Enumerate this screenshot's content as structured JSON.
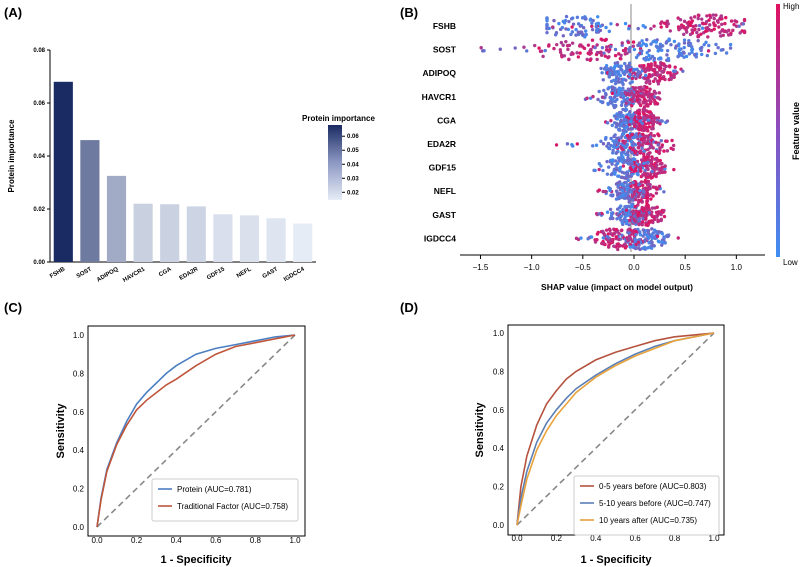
{
  "panels": {
    "a": "(A)",
    "b": "(B)",
    "c": "(C)",
    "d": "(D)"
  },
  "chart_data": [
    {
      "id": "A",
      "type": "bar",
      "categories": [
        "FSHB",
        "SOST",
        "ADIPOQ",
        "HAVCR1",
        "CGA",
        "EDA2R",
        "GDF15",
        "NEFL",
        "GAST",
        "IGDCC4"
      ],
      "values": [
        0.068,
        0.046,
        0.0325,
        0.022,
        0.0218,
        0.021,
        0.018,
        0.0176,
        0.0165,
        0.0145
      ],
      "ylabel": "Protein importance",
      "ylim": [
        0,
        0.08
      ],
      "yticks": [
        "0.00",
        "0.02",
        "0.04",
        "0.06",
        "0.08"
      ],
      "colorbar": {
        "title": "Protein importance",
        "range": [
          0.0145,
          0.068
        ],
        "ticks": [
          0.06,
          0.05,
          0.04,
          0.03,
          0.02
        ],
        "tick_labels": [
          "0.06",
          "0.05",
          "0.04",
          "0.03",
          "0.02"
        ],
        "colors": {
          "low": "#e6ecf6",
          "high": "#1a2b63"
        }
      }
    },
    {
      "id": "B",
      "type": "scatter",
      "subtype": "shap-beeswarm",
      "features": [
        "FSHB",
        "SOST",
        "ADIPOQ",
        "HAVCR1",
        "CGA",
        "EDA2R",
        "GDF15",
        "NEFL",
        "GAST",
        "IGDCC4"
      ],
      "spread": [
        {
          "min": -0.85,
          "max": 1.08,
          "low_center": -0.55,
          "high_center": 0.72
        },
        {
          "min": -1.5,
          "max": 0.98,
          "low_center": 0.3,
          "high_center": -0.4
        },
        {
          "min": -0.38,
          "max": 0.52,
          "low_center": -0.12,
          "high_center": 0.2
        },
        {
          "min": -0.52,
          "max": 0.3,
          "low_center": -0.15,
          "high_center": 0.07
        },
        {
          "min": -0.28,
          "max": 0.33,
          "low_center": -0.08,
          "high_center": 0.1
        },
        {
          "min": -0.8,
          "max": 0.42,
          "low_center": -0.06,
          "high_center": 0.12
        },
        {
          "min": -0.42,
          "max": 0.45,
          "low_center": -0.08,
          "high_center": 0.14
        },
        {
          "min": -0.44,
          "max": 0.3,
          "low_center": -0.06,
          "high_center": 0.07
        },
        {
          "min": -0.42,
          "max": 0.35,
          "low_center": -0.05,
          "high_center": 0.1
        },
        {
          "min": -0.57,
          "max": 0.45,
          "low_center": 0.1,
          "high_center": -0.15
        }
      ],
      "xlabel": "SHAP value (impact on model output)",
      "xlim": [
        -1.7,
        1.28
      ],
      "xticks": [
        -1.5,
        -1.0,
        -0.5,
        0.0,
        0.5,
        1.0
      ],
      "xtick_labels": [
        "−1.5",
        "−1.0",
        "−0.5",
        "0.0",
        "0.5",
        "1.0"
      ],
      "colorbar": {
        "title": "Feature value",
        "high": "High",
        "low": "Low",
        "colors": {
          "low": "#3f8ef2",
          "high": "#e0115f"
        }
      }
    },
    {
      "id": "C",
      "type": "line",
      "xlabel": "1 - Specificity",
      "ylabel": "Sensitivity",
      "xlim": [
        0,
        1
      ],
      "ylim": [
        0,
        1
      ],
      "ticks": [
        "0.0",
        "0.2",
        "0.4",
        "0.6",
        "0.8",
        "1.0"
      ],
      "series": [
        {
          "name": "Protein (AUC=0.781)",
          "color": "#4c7fc2",
          "x": [
            0,
            0.02,
            0.05,
            0.1,
            0.15,
            0.2,
            0.25,
            0.3,
            0.35,
            0.4,
            0.5,
            0.6,
            0.7,
            0.8,
            0.9,
            1.0
          ],
          "y": [
            0,
            0.15,
            0.3,
            0.44,
            0.55,
            0.64,
            0.7,
            0.75,
            0.8,
            0.84,
            0.9,
            0.93,
            0.95,
            0.97,
            0.99,
            1.0
          ]
        },
        {
          "name": "Traditional Factor (AUC=0.758)",
          "color": "#c0553a",
          "x": [
            0,
            0.02,
            0.05,
            0.1,
            0.15,
            0.2,
            0.25,
            0.3,
            0.35,
            0.4,
            0.5,
            0.6,
            0.7,
            0.8,
            0.9,
            1.0
          ],
          "y": [
            0,
            0.14,
            0.29,
            0.43,
            0.53,
            0.61,
            0.66,
            0.7,
            0.74,
            0.77,
            0.84,
            0.9,
            0.94,
            0.96,
            0.98,
            1.0
          ]
        }
      ]
    },
    {
      "id": "D",
      "type": "line",
      "xlabel": "1 - Specificity",
      "ylabel": "Sensitivity",
      "xlim": [
        0,
        1
      ],
      "ylim": [
        0,
        1
      ],
      "ticks": [
        "0.0",
        "0.2",
        "0.4",
        "0.6",
        "0.8",
        "1.0"
      ],
      "series": [
        {
          "name": "0-5 years before (AUC=0.803)",
          "color": "#b5533e",
          "x": [
            0,
            0.02,
            0.05,
            0.1,
            0.15,
            0.2,
            0.25,
            0.3,
            0.4,
            0.5,
            0.6,
            0.7,
            0.8,
            0.9,
            1.0
          ],
          "y": [
            0,
            0.2,
            0.36,
            0.52,
            0.63,
            0.7,
            0.76,
            0.8,
            0.86,
            0.9,
            0.93,
            0.96,
            0.98,
            0.99,
            1.0
          ]
        },
        {
          "name": "5-10 years before (AUC=0.747)",
          "color": "#5b7fb5",
          "x": [
            0,
            0.02,
            0.05,
            0.1,
            0.15,
            0.2,
            0.25,
            0.3,
            0.4,
            0.5,
            0.6,
            0.7,
            0.8,
            0.9,
            1.0
          ],
          "y": [
            0,
            0.14,
            0.28,
            0.43,
            0.53,
            0.6,
            0.66,
            0.71,
            0.78,
            0.84,
            0.89,
            0.93,
            0.96,
            0.98,
            1.0
          ]
        },
        {
          "name": "10 years after (AUC=0.735)",
          "color": "#e8a23c",
          "x": [
            0,
            0.02,
            0.05,
            0.1,
            0.15,
            0.2,
            0.25,
            0.3,
            0.4,
            0.5,
            0.6,
            0.7,
            0.8,
            0.9,
            1.0
          ],
          "y": [
            0,
            0.1,
            0.24,
            0.39,
            0.49,
            0.57,
            0.63,
            0.69,
            0.77,
            0.83,
            0.88,
            0.92,
            0.96,
            0.98,
            1.0
          ]
        }
      ]
    }
  ]
}
